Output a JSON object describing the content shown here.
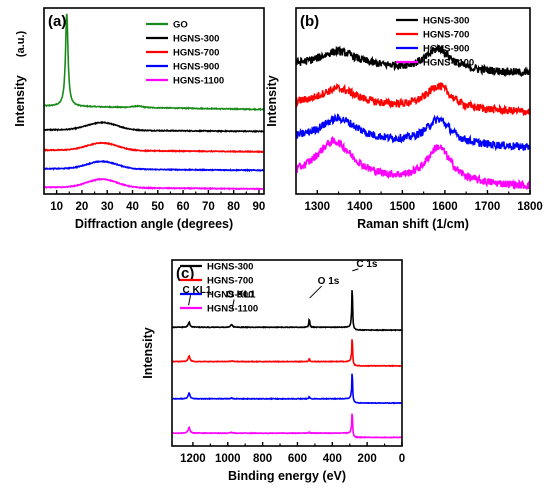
{
  "chart_data": [
    {
      "panel_label": "(a)",
      "type": "line",
      "xlabel": "Diffraction angle (degrees)",
      "ylabel": "Intensity",
      "yunit": "(a.u.)",
      "xlim": [
        5,
        92
      ],
      "xticks": [
        10,
        20,
        30,
        40,
        50,
        60,
        70,
        80,
        90
      ],
      "legend_placement": "top-right",
      "series": [
        {
          "name": "GO",
          "color": "#1a8a1a",
          "offset": 5.2,
          "peak": {
            "x": 14,
            "height": 5.5,
            "width": 0.6
          },
          "bump": {
            "x": 42,
            "height": 0.08,
            "width": 2
          },
          "slope": -0.2
        },
        {
          "name": "HGNS-300",
          "color": "#000000",
          "offset": 3.8,
          "peak": {
            "x": 28,
            "height": 0.45,
            "width": 6
          },
          "slope": -0.1
        },
        {
          "name": "HGNS-700",
          "color": "#ff0000",
          "offset": 2.6,
          "peak": {
            "x": 28,
            "height": 0.45,
            "width": 6
          },
          "slope": -0.1
        },
        {
          "name": "HGNS-900",
          "color": "#0000ff",
          "offset": 1.5,
          "peak": {
            "x": 28,
            "height": 0.45,
            "width": 6
          },
          "slope": -0.1
        },
        {
          "name": "HGNS-1100",
          "color": "#ff00ff",
          "offset": 0.4,
          "peak": {
            "x": 28,
            "height": 0.5,
            "width": 6
          },
          "slope": -0.1
        }
      ]
    },
    {
      "panel_label": "(b)",
      "type": "line",
      "xlabel": "Raman shift (1/cm)",
      "ylabel": "Intensity",
      "xlim": [
        1250,
        1800
      ],
      "xticks": [
        1300,
        1400,
        1500,
        1600,
        1700,
        1800
      ],
      "legend_placement": "top-right",
      "series": [
        {
          "name": "HGNS-300",
          "color": "#000000",
          "offset": 7.2,
          "d_band": {
            "x": 1350,
            "height": 0.9
          },
          "g_band": {
            "x": 1585,
            "height": 1.2
          }
        },
        {
          "name": "HGNS-700",
          "color": "#ff0000",
          "offset": 5.0,
          "d_band": {
            "x": 1350,
            "height": 1.0
          },
          "g_band": {
            "x": 1585,
            "height": 1.3
          }
        },
        {
          "name": "HGNS-900",
          "color": "#0000ff",
          "offset": 3.0,
          "d_band": {
            "x": 1350,
            "height": 1.3
          },
          "g_band": {
            "x": 1585,
            "height": 1.4
          }
        },
        {
          "name": "HGNS-1100",
          "color": "#ff00ff",
          "offset": 0.8,
          "d_band": {
            "x": 1340,
            "height": 2.2
          },
          "g_band": {
            "x": 1585,
            "height": 2.0
          }
        }
      ]
    },
    {
      "panel_label": "(c)",
      "type": "line",
      "xlabel": "Binding energy (eV)",
      "ylabel": "Intensity",
      "xlim": [
        1320,
        0
      ],
      "xticks": [
        1200,
        1000,
        800,
        600,
        400,
        200,
        0
      ],
      "legend_placement": "top-left",
      "annotations": [
        {
          "text": "C KL1",
          "x": 1225,
          "y": 9.7
        },
        {
          "text": "O KL1",
          "x": 975,
          "y": 9.4
        },
        {
          "text": "O 1s",
          "x": 530,
          "y": 10.2
        },
        {
          "text": "C 1s",
          "x": 285,
          "y": 12.1
        }
      ],
      "series": [
        {
          "name": "HGNS-300",
          "color": "#000000",
          "offset": 8.1,
          "step": 0.2,
          "c1s": 3.0,
          "o1s": 0.6,
          "okl": 0.2,
          "ckl": 0.35
        },
        {
          "name": "HGNS-700",
          "color": "#ff0000",
          "offset": 5.6,
          "step": 0.3,
          "c1s": 2.0,
          "o1s": 0.2,
          "okl": 0.05,
          "ckl": 0.4
        },
        {
          "name": "HGNS-900",
          "color": "#0000ff",
          "offset": 3.0,
          "step": 0.3,
          "c1s": 2.2,
          "o1s": 0.15,
          "okl": 0.05,
          "ckl": 0.4
        },
        {
          "name": "HGNS-1100",
          "color": "#ff00ff",
          "offset": 0.6,
          "step": 0.3,
          "c1s": 1.8,
          "o1s": 0.1,
          "okl": 0.05,
          "ckl": 0.4
        }
      ]
    }
  ]
}
